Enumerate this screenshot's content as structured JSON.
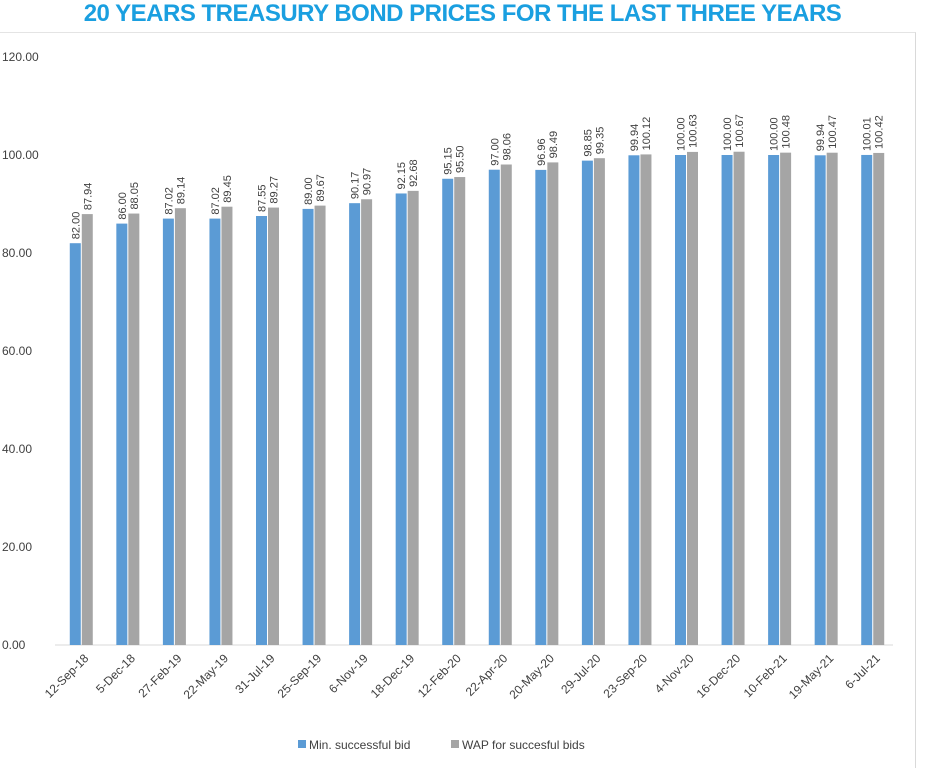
{
  "chart_data": {
    "type": "bar",
    "title": "20 YEARS TREASURY BOND PRICES FOR THE LAST THREE YEARS",
    "categories": [
      "12-Sep-18",
      "5-Dec-18",
      "27-Feb-19",
      "22-May-19",
      "31-Jul-19",
      "25-Sep-19",
      "6-Nov-19",
      "18-Dec-19",
      "12-Feb-20",
      "22-Apr-20",
      "20-May-20",
      "29-Jul-20",
      "23-Sep-20",
      "4-Nov-20",
      "16-Dec-20",
      "10-Feb-21",
      "19-May-21",
      "6-Jul-21"
    ],
    "series": [
      {
        "name": "Min. successful bid",
        "color": "#5b9bd5",
        "values": [
          82.0,
          86.0,
          87.02,
          87.02,
          87.55,
          89.0,
          90.17,
          92.15,
          95.15,
          97.0,
          96.96,
          98.85,
          99.94,
          100.0,
          100.0,
          100.0,
          99.94,
          100.01
        ],
        "labels": [
          "82.00",
          "86.00",
          "87.02",
          "87.02",
          "87.55",
          "89.00",
          "90.17",
          "92.15",
          "95.15",
          "97.00",
          "96.96",
          "98.85",
          "99.94",
          "100.00",
          "100.00",
          "100.00",
          "99.94",
          "100.01"
        ]
      },
      {
        "name": "WAP for succesful bids",
        "color": "#a5a5a5",
        "values": [
          87.94,
          88.05,
          89.14,
          89.45,
          89.27,
          89.67,
          90.97,
          92.68,
          95.5,
          98.06,
          98.49,
          99.35,
          100.12,
          100.63,
          100.67,
          100.48,
          100.47,
          100.42
        ],
        "labels": [
          "87.94",
          "88.05",
          "89.14",
          "89.45",
          "89.27",
          "89.67",
          "90.97",
          "92.68",
          "95.50",
          "98.06",
          "98.49",
          "99.35",
          "100.12",
          "100.63",
          "100.67",
          "100.48",
          "100.47",
          "100.42"
        ]
      }
    ],
    "ylim": [
      0,
      120
    ],
    "yticks": [
      "0.00",
      "20.00",
      "40.00",
      "60.00",
      "80.00",
      "100.00",
      "120.00"
    ],
    "grid": false,
    "legend": "bottom"
  }
}
